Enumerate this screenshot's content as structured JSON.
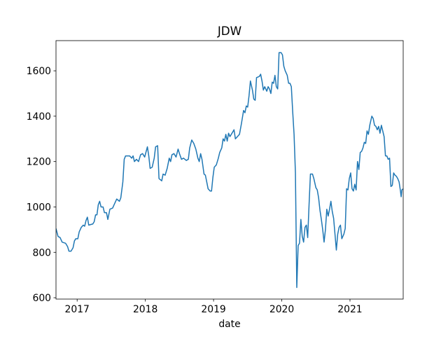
{
  "chart_data": {
    "type": "line",
    "title": "JDW",
    "xlabel": "date",
    "color": "#1f77b4",
    "xlim": [
      2016.69,
      2021.78
    ],
    "xticks": [
      2017,
      2018,
      2019,
      2020,
      2021
    ],
    "ylim": [
      594,
      1733
    ],
    "yticks": [
      600,
      800,
      1000,
      1200,
      1400,
      1600
    ],
    "x": [
      2016.69,
      2016.72,
      2016.75,
      2016.78,
      2016.83,
      2016.86,
      2016.88,
      2016.91,
      2016.94,
      2016.96,
      2016.98,
      2017.01,
      2017.03,
      2017.06,
      2017.09,
      2017.11,
      2017.13,
      2017.15,
      2017.17,
      2017.23,
      2017.25,
      2017.27,
      2017.29,
      2017.31,
      2017.33,
      2017.35,
      2017.38,
      2017.4,
      2017.43,
      2017.45,
      2017.48,
      2017.52,
      2017.55,
      2017.58,
      2017.62,
      2017.64,
      2017.67,
      2017.69,
      2017.71,
      2017.77,
      2017.8,
      2017.82,
      2017.84,
      2017.87,
      2017.9,
      2017.93,
      2017.96,
      2017.99,
      2018.03,
      2018.05,
      2018.07,
      2018.1,
      2018.13,
      2018.15,
      2018.18,
      2018.2,
      2018.24,
      2018.26,
      2018.29,
      2018.32,
      2018.35,
      2018.37,
      2018.39,
      2018.42,
      2018.45,
      2018.48,
      2018.5,
      2018.53,
      2018.56,
      2018.6,
      2018.63,
      2018.65,
      2018.68,
      2018.71,
      2018.74,
      2018.77,
      2018.79,
      2018.81,
      2018.83,
      2018.86,
      2018.88,
      2018.9,
      2018.92,
      2018.95,
      2018.97,
      2018.99,
      2019.01,
      2019.04,
      2019.07,
      2019.09,
      2019.12,
      2019.14,
      2019.16,
      2019.18,
      2019.2,
      2019.22,
      2019.24,
      2019.27,
      2019.3,
      2019.32,
      2019.35,
      2019.38,
      2019.41,
      2019.44,
      2019.46,
      2019.48,
      2019.5,
      2019.52,
      2019.54,
      2019.57,
      2019.59,
      2019.61,
      2019.63,
      2019.67,
      2019.69,
      2019.71,
      2019.73,
      2019.75,
      2019.78,
      2019.8,
      2019.82,
      2019.84,
      2019.86,
      2019.88,
      2019.9,
      2019.92,
      2019.94,
      2019.96,
      2019.99,
      2020.01,
      2020.03,
      2020.05,
      2020.08,
      2020.1,
      2020.12,
      2020.14,
      2020.16,
      2020.18,
      2020.2,
      2020.22,
      2020.24,
      2020.26,
      2020.28,
      2020.3,
      2020.32,
      2020.34,
      2020.36,
      2020.38,
      2020.4,
      2020.42,
      2020.45,
      2020.47,
      2020.5,
      2020.52,
      2020.54,
      2020.56,
      2020.58,
      2020.6,
      2020.62,
      2020.64,
      2020.66,
      2020.68,
      2020.7,
      2020.72,
      2020.74,
      2020.76,
      2020.78,
      2020.8,
      2020.82,
      2020.84,
      2020.86,
      2020.88,
      2020.91,
      2020.93,
      2020.95,
      2020.97,
      2020.99,
      2021.01,
      2021.03,
      2021.05,
      2021.07,
      2021.09,
      2021.11,
      2021.13,
      2021.15,
      2021.17,
      2021.19,
      2021.21,
      2021.23,
      2021.25,
      2021.27,
      2021.29,
      2021.32,
      2021.34,
      2021.36,
      2021.38,
      2021.4,
      2021.42,
      2021.44,
      2021.46,
      2021.48,
      2021.5,
      2021.52,
      2021.54,
      2021.56,
      2021.58,
      2021.6,
      2021.62,
      2021.64,
      2021.66,
      2021.68,
      2021.7,
      2021.72,
      2021.74,
      2021.75,
      2021.76,
      2021.78
    ],
    "values": [
      905,
      870,
      865,
      845,
      840,
      825,
      805,
      805,
      820,
      850,
      860,
      860,
      890,
      910,
      920,
      915,
      940,
      955,
      920,
      925,
      935,
      965,
      965,
      1010,
      1025,
      1000,
      1000,
      975,
      975,
      945,
      990,
      995,
      1015,
      1035,
      1025,
      1040,
      1110,
      1210,
      1225,
      1225,
      1215,
      1225,
      1200,
      1210,
      1200,
      1230,
      1235,
      1220,
      1265,
      1225,
      1170,
      1175,
      1215,
      1265,
      1270,
      1125,
      1115,
      1145,
      1140,
      1170,
      1215,
      1200,
      1230,
      1235,
      1220,
      1255,
      1235,
      1210,
      1215,
      1205,
      1210,
      1260,
      1295,
      1280,
      1255,
      1215,
      1200,
      1235,
      1210,
      1145,
      1140,
      1110,
      1080,
      1070,
      1070,
      1130,
      1175,
      1185,
      1215,
      1240,
      1260,
      1300,
      1290,
      1320,
      1290,
      1325,
      1310,
      1325,
      1340,
      1300,
      1310,
      1320,
      1370,
      1425,
      1415,
      1445,
      1440,
      1490,
      1555,
      1515,
      1475,
      1470,
      1570,
      1575,
      1585,
      1555,
      1515,
      1530,
      1510,
      1530,
      1520,
      1500,
      1550,
      1545,
      1580,
      1530,
      1520,
      1680,
      1680,
      1670,
      1620,
      1600,
      1580,
      1545,
      1545,
      1530,
      1420,
      1320,
      1150,
      645,
      830,
      840,
      945,
      870,
      845,
      910,
      920,
      865,
      1010,
      1145,
      1145,
      1125,
      1085,
      1075,
      1040,
      985,
      945,
      900,
      845,
      900,
      990,
      960,
      990,
      1025,
      980,
      950,
      880,
      810,
      880,
      910,
      920,
      860,
      880,
      905,
      1080,
      1075,
      1125,
      1150,
      1080,
      1070,
      1100,
      1075,
      1200,
      1165,
      1240,
      1245,
      1260,
      1285,
      1280,
      1335,
      1320,
      1360,
      1400,
      1390,
      1360,
      1355,
      1340,
      1355,
      1325,
      1360,
      1335,
      1310,
      1225,
      1225,
      1210,
      1215,
      1090,
      1095,
      1150,
      1140,
      1135,
      1125,
      1110,
      1070,
      1045,
      1075,
      1080
    ]
  }
}
